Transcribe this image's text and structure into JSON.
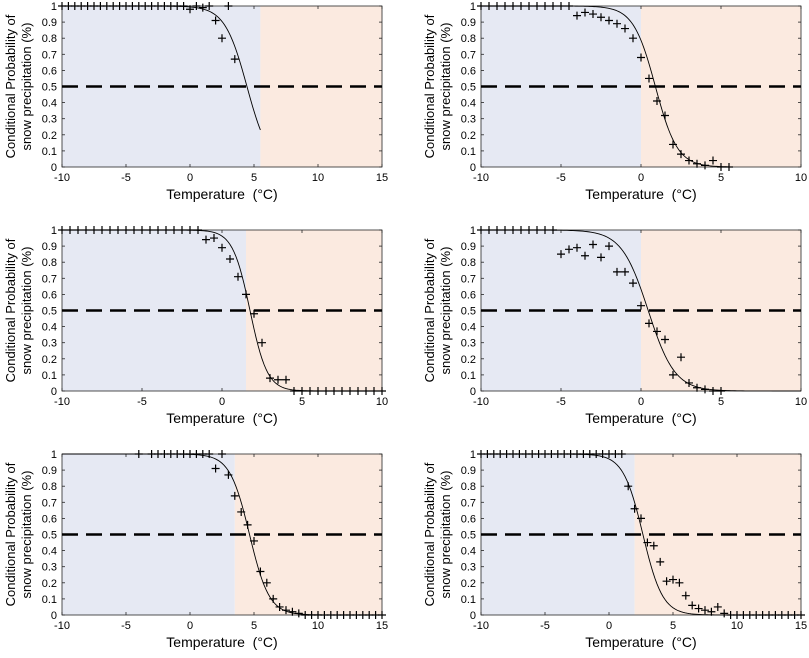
{
  "figure": {
    "ylabel_line1": "Conditional Probability of",
    "ylabel_line2": "snow precipitation (%)",
    "xlabel": "Temperature  (°C)"
  },
  "colors": {
    "snow_region": "#e6e9f3",
    "rain_region": "#fbeae0",
    "curve": "#000000",
    "threshold": "#000000",
    "markers": "#000000"
  },
  "chart_data": [
    {
      "type": "scatter",
      "panel": "top-left",
      "xlim": [
        -10,
        15
      ],
      "ylim": [
        0,
        1
      ],
      "xticks": [
        -10,
        -5,
        0,
        5,
        10,
        15
      ],
      "yticks": [
        0,
        0.1,
        0.2,
        0.3,
        0.4,
        0.5,
        0.6,
        0.7,
        0.8,
        0.9,
        1
      ],
      "xlabel": "Temperature  (°C)",
      "ylabel": "Conditional Probability of snow precipitation (%)",
      "threshold": 0.5,
      "shading_split": 5.5,
      "fit": {
        "t50": 4.45,
        "k": 1.15,
        "x_range": [
          -10,
          5.5
        ]
      },
      "points": {
        "x": [
          -10,
          -9.5,
          -9,
          -8.5,
          -8,
          -7.5,
          -7,
          -6.5,
          -6,
          -5.5,
          -5,
          -4.5,
          -4,
          -3.5,
          -3,
          -2.5,
          -2,
          -1.5,
          -1,
          -0.5,
          0,
          0.5,
          1,
          1.5,
          2,
          2.5,
          3,
          3.5
        ],
        "y": [
          1,
          1,
          1,
          1,
          1,
          1,
          1,
          1,
          1,
          1,
          1,
          1,
          1,
          1,
          1,
          1,
          1,
          1,
          1,
          1,
          0.98,
          1,
          0.99,
          1,
          0.91,
          0.8,
          1,
          0.67
        ]
      }
    },
    {
      "type": "scatter",
      "panel": "top-right",
      "xlim": [
        -10,
        10
      ],
      "ylim": [
        0,
        1
      ],
      "xticks": [
        -10,
        -5,
        0,
        5,
        10
      ],
      "yticks": [
        0,
        0.1,
        0.2,
        0.3,
        0.4,
        0.5,
        0.6,
        0.7,
        0.8,
        0.9,
        1
      ],
      "xlabel": "Temperature  (°C)",
      "ylabel": "Conditional Probability of snow precipitation (%)",
      "threshold": 0.5,
      "shading_split": 0,
      "fit": {
        "t50": 0.9,
        "k": 1.45,
        "x_range": [
          -10,
          5.5
        ]
      },
      "points": {
        "x": [
          -10,
          -9.5,
          -9,
          -8.5,
          -8,
          -7.5,
          -7,
          -6.5,
          -6,
          -5.5,
          -5,
          -4.5,
          -4,
          -3.5,
          -3,
          -2.5,
          -2,
          -1.5,
          -1,
          -0.5,
          0,
          0.5,
          1,
          1.5,
          2,
          2.5,
          3,
          3.5,
          4,
          4.5,
          5,
          5.5
        ],
        "y": [
          1,
          1,
          1,
          1,
          1,
          1,
          1,
          1,
          1,
          1,
          1,
          1,
          0.94,
          0.96,
          0.95,
          0.93,
          0.91,
          0.89,
          0.86,
          0.8,
          0.68,
          0.55,
          0.41,
          0.32,
          0.14,
          0.08,
          0.04,
          0.02,
          0.01,
          0.04,
          0,
          0
        ]
      }
    },
    {
      "type": "scatter",
      "panel": "middle-left",
      "xlim": [
        -10,
        10
      ],
      "ylim": [
        0,
        1
      ],
      "xticks": [
        -10,
        -5,
        0,
        5,
        10
      ],
      "yticks": [
        0,
        0.1,
        0.2,
        0.3,
        0.4,
        0.5,
        0.6,
        0.7,
        0.8,
        0.9,
        1
      ],
      "xlabel": "Temperature  (°C)",
      "ylabel": "Conditional Probability of snow precipitation (%)",
      "threshold": 0.5,
      "shading_split": 1.5,
      "fit": {
        "t50": 1.75,
        "k": 1.85,
        "x_range": [
          -10,
          10
        ]
      },
      "points": {
        "x": [
          -10,
          -9.5,
          -9,
          -8.5,
          -8,
          -7.5,
          -7,
          -6.5,
          -6,
          -5.5,
          -5,
          -4.5,
          -4,
          -3.5,
          -3,
          -2.5,
          -2,
          -1.5,
          -1,
          -0.5,
          0,
          0.5,
          1,
          1.5,
          2,
          2.5,
          3,
          3.5,
          4,
          4.5,
          5,
          5.5,
          6,
          6.5,
          7,
          7.5,
          8,
          8.5,
          9,
          9.5,
          10
        ],
        "y": [
          1,
          1,
          1,
          1,
          1,
          1,
          1,
          1,
          1,
          1,
          1,
          1,
          1,
          1,
          1,
          1,
          1,
          1,
          0.94,
          0.95,
          0.89,
          0.82,
          0.71,
          0.6,
          0.48,
          0.3,
          0.08,
          0.07,
          0.07,
          0,
          0,
          0,
          0,
          0,
          0,
          0,
          0,
          0,
          0,
          0,
          0
        ]
      }
    },
    {
      "type": "scatter",
      "panel": "middle-right",
      "xlim": [
        -10,
        10
      ],
      "ylim": [
        0,
        1
      ],
      "xticks": [
        -10,
        -5,
        0,
        5,
        10
      ],
      "yticks": [
        0,
        0.1,
        0.2,
        0.3,
        0.4,
        0.5,
        0.6,
        0.7,
        0.8,
        0.9,
        1
      ],
      "xlabel": "Temperature  (°C)",
      "ylabel": "Conditional Probability of snow precipitation (%)",
      "threshold": 0.5,
      "shading_split": 0,
      "fit": {
        "t50": 0.45,
        "k": 1.2,
        "x_range": [
          -10,
          10
        ]
      },
      "points": {
        "x": [
          -10,
          -9.5,
          -9,
          -8.5,
          -8,
          -7.5,
          -7,
          -6.5,
          -6,
          -5.5,
          -5,
          -4.5,
          -4,
          -3.5,
          -3,
          -2.5,
          -2,
          -1.5,
          -1,
          -0.5,
          0,
          0.5,
          1,
          1.5,
          2,
          2.5,
          3,
          3.5,
          4,
          4.5,
          5
        ],
        "y": [
          1,
          1,
          1,
          1,
          1,
          1,
          1,
          1,
          1,
          1,
          0.85,
          0.88,
          0.89,
          0.84,
          0.91,
          0.83,
          0.9,
          0.74,
          0.74,
          0.67,
          0.53,
          0.42,
          0.37,
          0.32,
          0.1,
          0.21,
          0.05,
          0.02,
          0.01,
          0,
          0
        ]
      }
    },
    {
      "type": "scatter",
      "panel": "bottom-left",
      "xlim": [
        -10,
        15
      ],
      "ylim": [
        0,
        1
      ],
      "xticks": [
        -10,
        -5,
        0,
        5,
        10,
        15
      ],
      "yticks": [
        0,
        0.1,
        0.2,
        0.3,
        0.4,
        0.5,
        0.6,
        0.7,
        0.8,
        0.9,
        1
      ],
      "xlabel": "Temperature  (°C)",
      "ylabel": "Conditional Probability of snow precipitation (%)",
      "threshold": 0.5,
      "shading_split": 3.5,
      "fit": {
        "t50": 4.65,
        "k": 1.3,
        "x_range": [
          -10,
          15
        ]
      },
      "points": {
        "x": [
          -4,
          -3,
          -2.5,
          -2,
          -1.5,
          -1,
          -0.5,
          0,
          0.5,
          1,
          1.5,
          2,
          2.5,
          3,
          3.5,
          4,
          4.5,
          5,
          5.5,
          6,
          6.5,
          7,
          7.5,
          8,
          8.5,
          9,
          9.5,
          10,
          10.5,
          11,
          11.5,
          12,
          12.5,
          13,
          13.5,
          14,
          14.5,
          15
        ],
        "y": [
          1,
          1,
          1,
          1,
          1,
          1,
          1,
          1,
          1,
          1,
          1,
          0.91,
          1,
          0.87,
          0.74,
          0.64,
          0.56,
          0.46,
          0.27,
          0.2,
          0.1,
          0.05,
          0.03,
          0.02,
          0.01,
          0,
          0,
          0,
          0,
          0,
          0,
          0,
          0,
          0,
          0,
          0,
          0,
          0
        ]
      }
    },
    {
      "type": "scatter",
      "panel": "bottom-right",
      "xlim": [
        -10,
        15
      ],
      "ylim": [
        0,
        1
      ],
      "xticks": [
        -10,
        -5,
        0,
        5,
        10,
        15
      ],
      "yticks": [
        0,
        0.1,
        0.2,
        0.3,
        0.4,
        0.5,
        0.6,
        0.7,
        0.8,
        0.9,
        1
      ],
      "xlabel": "Temperature  (°C)",
      "ylabel": "Conditional Probability of snow precipitation (%)",
      "threshold": 0.5,
      "shading_split": 2,
      "fit": {
        "t50": 2.65,
        "k": 1.3,
        "x_range": [
          -10,
          15
        ]
      },
      "points": {
        "x": [
          -10,
          -9.5,
          -9,
          -8.5,
          -8,
          -7.5,
          -7,
          -6.5,
          -6,
          -5.5,
          -5,
          -4.5,
          -4,
          -3.5,
          -3,
          -2.5,
          -2,
          -1.5,
          -1,
          -0.5,
          0,
          0.5,
          1,
          1.5,
          2,
          2.5,
          3,
          3.5,
          4,
          4.5,
          5,
          5.5,
          6,
          6.5,
          7,
          7.5,
          8,
          8.5,
          9,
          9.5,
          10,
          10.5,
          11,
          11.5,
          12,
          12.5,
          13,
          13.5,
          14,
          14.5,
          15
        ],
        "y": [
          1,
          1,
          1,
          1,
          1,
          1,
          1,
          1,
          1,
          1,
          1,
          1,
          1,
          1,
          1,
          1,
          1,
          1,
          1,
          1,
          1,
          1,
          1,
          0.8,
          0.66,
          0.6,
          0.45,
          0.43,
          0.33,
          0.21,
          0.22,
          0.2,
          0.12,
          0.06,
          0.04,
          0.03,
          0.02,
          0.05,
          0.01,
          0,
          0,
          0,
          0,
          0,
          0,
          0,
          0,
          0,
          0,
          0,
          0
        ]
      }
    }
  ]
}
